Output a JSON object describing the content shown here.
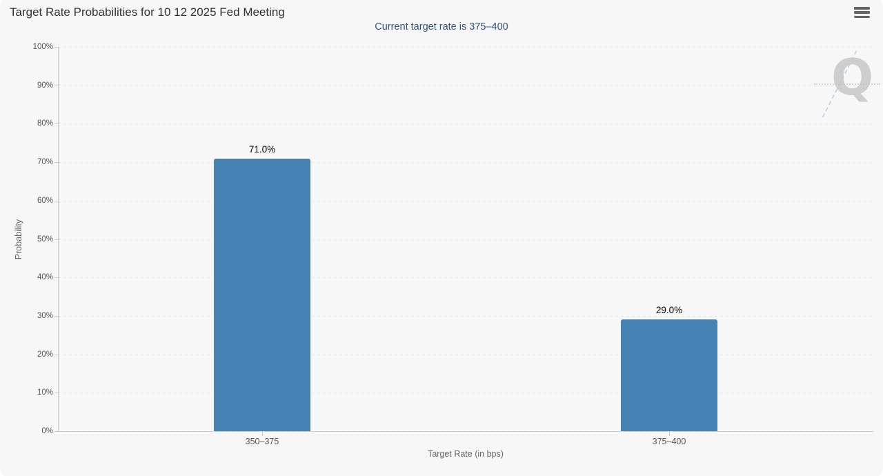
{
  "chart_data": {
    "type": "bar",
    "title": "Target Rate Probabilities for 10 12 2025 Fed Meeting",
    "subtitle": "Current target rate is 375–400",
    "categories": [
      "350–375",
      "375–400"
    ],
    "values": [
      71.0,
      29.0
    ],
    "value_labels": [
      "71.0%",
      "29.0%"
    ],
    "xlabel": "Target Rate (in bps)",
    "ylabel": "Probability",
    "ylim": [
      0,
      100
    ],
    "ytick_step": 10,
    "ytick_suffix": "%",
    "grid": "dotted-horizontal",
    "legend": "none"
  },
  "controls": {
    "menu_icon": "hamburger-icon"
  },
  "watermark": {
    "letter": "Q"
  },
  "colors": {
    "bar": "#4682b4",
    "panel_bg": "#f7f7f7",
    "title_text": "#333333",
    "subtitle_text": "#36537a",
    "axis_line": "#cccccc",
    "grid_line": "#dcdcdc",
    "tick_label": "#555555",
    "axis_title": "#666666",
    "data_label": "#000000",
    "menu_icon": "#636363",
    "watermark_gray": "#c7c7c7",
    "watermark_blue": "#b9d5ec"
  }
}
